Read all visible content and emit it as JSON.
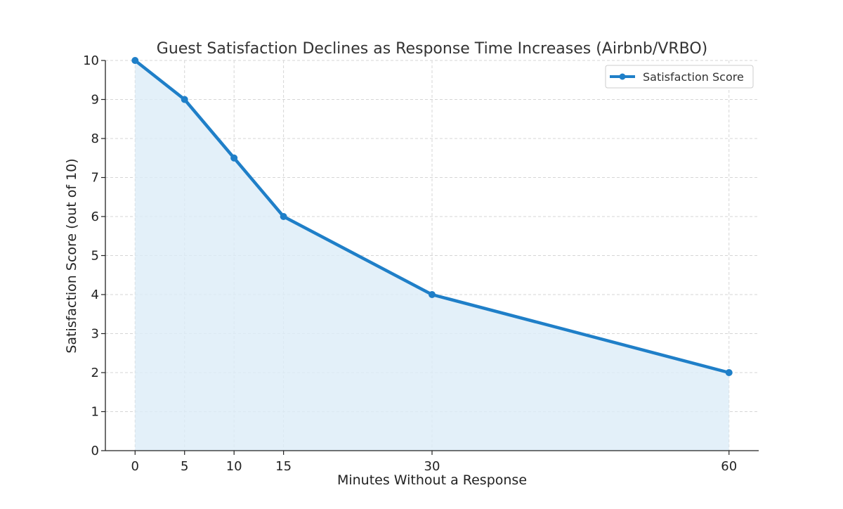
{
  "chart_data": {
    "type": "line",
    "title": "Guest Satisfaction Declines as Response Time Increases (Airbnb/VRBO)",
    "xlabel": "Minutes Without a Response",
    "ylabel": "Satisfaction Score (out of 10)",
    "x": [
      0,
      5,
      10,
      15,
      30,
      60
    ],
    "xticks": [
      0,
      5,
      10,
      15,
      30,
      60
    ],
    "yticks": [
      0,
      1,
      2,
      3,
      4,
      5,
      6,
      7,
      8,
      9,
      10
    ],
    "xlim": [
      -3,
      63
    ],
    "ylim": [
      0,
      10
    ],
    "grid": true,
    "area_fill": true,
    "legend_position": "top-right",
    "series": [
      {
        "name": "Satisfaction Score",
        "values": [
          10,
          9,
          7.5,
          6,
          4,
          2
        ],
        "color": "#1f7fc8",
        "fill_color": "#dcecf7"
      }
    ]
  }
}
